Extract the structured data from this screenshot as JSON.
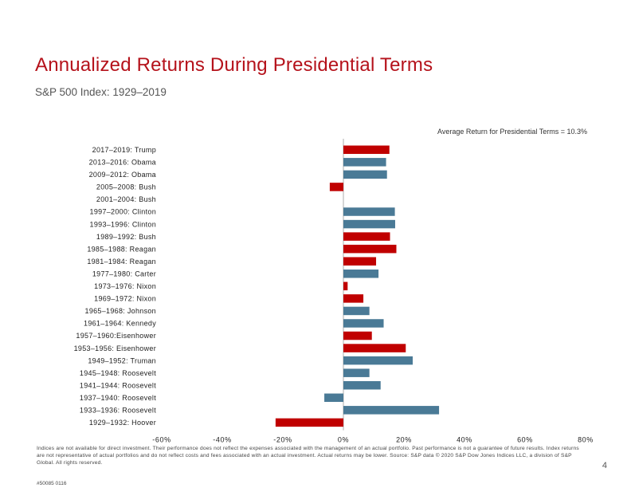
{
  "slide": {
    "title": "Annualized Returns During Presidential Terms",
    "subtitle": "S&P 500 Index: 1929–2019",
    "average_note": "Average Return for Presidential Terms = 10.3%",
    "disclaimer": "Indices are not available for direct investment. Their performance does not reflect the expenses associated with the management of an actual portfolio. Past performance is not a guarantee of future results. Index returns are not representative of actual portfolios and do not reflect costs and fees associated with an actual investment. Actual returns may be lower. Source: S&P data © 2020 S&P Dow Jones Indices LLC, a division of S&P Global. All rights reserved.",
    "page_number": "4",
    "doc_id": "#50085 0116"
  },
  "chart_data": {
    "type": "bar",
    "orientation": "horizontal",
    "title": "Annualized Returns During Presidential Terms",
    "subtitle": "S&P 500 Index: 1929–2019",
    "xlabel": "",
    "ylabel": "",
    "xlim": [
      -60,
      80
    ],
    "xticks": [
      -60,
      -40,
      -20,
      0,
      20,
      40,
      60,
      80
    ],
    "tick_labels": [
      "-60%",
      "-40%",
      "-20%",
      "0%",
      "20%",
      "40%",
      "60%",
      "80%"
    ],
    "unit": "%",
    "average_return": 10.3,
    "colors": {
      "republican": "#c00000",
      "democrat": "#4a7a96"
    },
    "categories": [
      "2017–2019: Trump",
      "2013–2016: Obama",
      "2009–2012: Obama",
      "2005–2008: Bush",
      "2001–2004: Bush",
      "1997–2000: Clinton",
      "1993–1996: Clinton",
      "1989–1992: Bush",
      "1985–1988: Reagan",
      "1981–1984: Reagan",
      "1977–1980: Carter",
      "1973–1976: Nixon",
      "1969–1972: Nixon",
      "1965–1968: Johnson",
      "1961–1964: Kennedy",
      "1957–1960:Eisenhower",
      "1953–1956: Eisenhower",
      "1949–1952: Truman",
      "1945–1948: Roosevelt",
      "1941–1944: Roosevelt",
      "1937–1940: Roosevelt",
      "1933–1936: Roosevelt",
      "1929–1932: Hoover"
    ],
    "values": [
      15.2,
      14.1,
      14.4,
      -4.5,
      0,
      17.0,
      17.1,
      15.4,
      17.5,
      10.8,
      11.6,
      1.4,
      6.6,
      8.6,
      13.3,
      9.4,
      20.6,
      22.9,
      8.6,
      12.3,
      -6.3,
      31.6,
      -22.4
    ],
    "party": [
      "R",
      "D",
      "D",
      "R",
      "R",
      "D",
      "D",
      "R",
      "R",
      "R",
      "D",
      "R",
      "R",
      "D",
      "D",
      "R",
      "R",
      "D",
      "D",
      "D",
      "D",
      "D",
      "R"
    ]
  }
}
